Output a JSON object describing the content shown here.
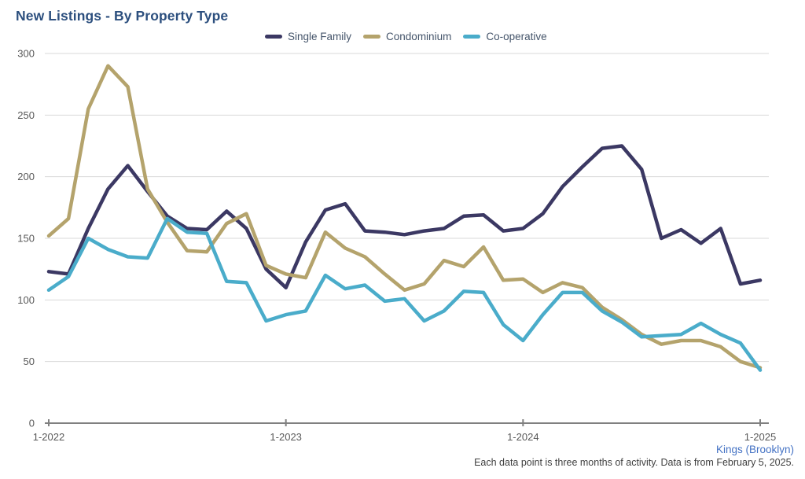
{
  "header": {
    "title": "New Listings - By Property Type"
  },
  "chart_data": {
    "type": "line",
    "title": "New Listings - By Property Type",
    "point_count": 37,
    "x_tick_labels": [
      "1-2022",
      "1-2023",
      "1-2024",
      "1-2025"
    ],
    "x_tick_indices": [
      0,
      12,
      24,
      36
    ],
    "y_ticks": [
      0,
      50,
      100,
      150,
      200,
      250,
      300
    ],
    "ylim": [
      0,
      300
    ],
    "grid": "horizontal-only",
    "legend_position": "top-center",
    "series": [
      {
        "name": "Single Family",
        "color": "#3b3863",
        "values": [
          123,
          121,
          158,
          190,
          209,
          188,
          168,
          158,
          157,
          172,
          158,
          125,
          110,
          147,
          173,
          178,
          156,
          155,
          153,
          156,
          158,
          168,
          169,
          156,
          158,
          170,
          192,
          208,
          223,
          225,
          206,
          150,
          157,
          146,
          158,
          113,
          116
        ]
      },
      {
        "name": "Condominium",
        "color": "#b4a36c",
        "values": [
          152,
          166,
          255,
          290,
          273,
          190,
          163,
          140,
          139,
          162,
          170,
          128,
          121,
          118,
          155,
          142,
          135,
          121,
          108,
          113,
          132,
          127,
          143,
          116,
          117,
          106,
          114,
          110,
          94,
          84,
          72,
          64,
          67,
          67,
          62,
          50,
          45
        ]
      },
      {
        "name": "Co-operative",
        "color": "#4aacca",
        "values": [
          108,
          119,
          150,
          141,
          135,
          134,
          166,
          155,
          154,
          115,
          114,
          83,
          88,
          91,
          120,
          109,
          112,
          99,
          101,
          83,
          91,
          107,
          106,
          80,
          67,
          88,
          106,
          106,
          91,
          82,
          70,
          71,
          72,
          81,
          72,
          65,
          43
        ]
      }
    ]
  },
  "footer": {
    "region": "Kings (Brooklyn)",
    "note": "Each data point is three months of activity. Data is from February 5, 2025."
  },
  "colors": {
    "title": "#2c4f7e",
    "legend_text": "#44546a",
    "axis_label": "#595959",
    "gridline": "#d9d9d9",
    "axis_line": "#808080",
    "region_link": "#4472c4",
    "note_text": "#404040",
    "background": "#ffffff"
  }
}
